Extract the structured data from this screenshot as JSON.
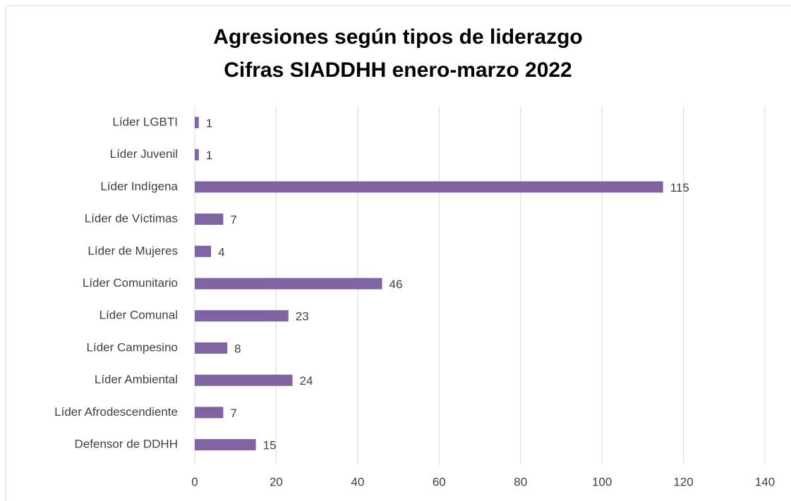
{
  "chart_data": {
    "type": "barh",
    "title": [
      "Agresiones según tipos de liderazgo",
      "Cifras SIADDHH enero-marzo 2022"
    ],
    "categories": [
      "Líder LGBTI",
      "Líder Juvenil",
      "Líder Indígena",
      "Líder de Víctimas",
      "Líder de Mujeres",
      "Líder Comunitario",
      "Líder Comunal",
      "Líder Campesino",
      "Líder Ambiental",
      "Líder Afrodescendiente",
      "Defensor de DDHH"
    ],
    "values": [
      1,
      1,
      115,
      7,
      4,
      46,
      23,
      8,
      24,
      7,
      15
    ],
    "color": "#8064a2",
    "xlim": [
      0,
      140
    ],
    "xticks": [
      0,
      20,
      40,
      60,
      80,
      100,
      120,
      140
    ],
    "grid": true
  }
}
